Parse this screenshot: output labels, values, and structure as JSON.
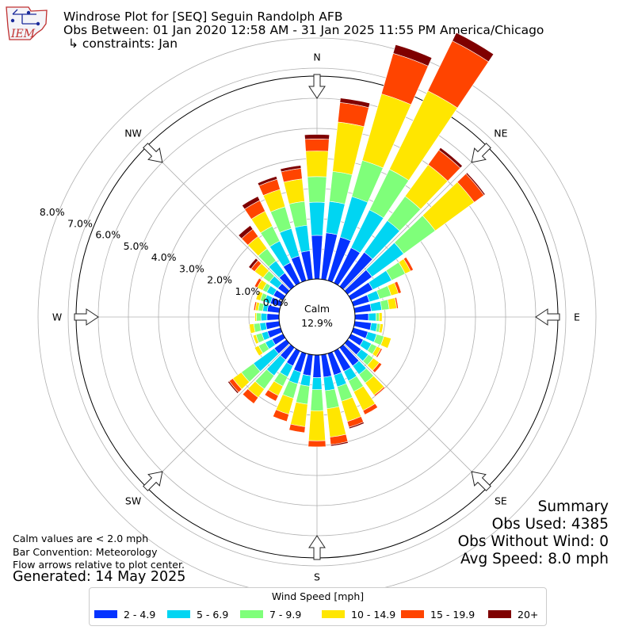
{
  "header": {
    "title": "Windrose Plot for [SEQ] Seguin Randolph AFB",
    "obs_range": "Obs Between: 01 Jan 2020 12:58 AM - 31 Jan 2025 11:55 PM America/Chicago",
    "constraints": "↳ constraints: Jan",
    "logo_text": "IEM"
  },
  "notes": {
    "calm_def": "Calm values are < 2.0 mph",
    "convention": "Bar Convention: Meteorology",
    "flow": "Flow arrows relative to plot center.",
    "generated": "Generated: 14 May 2025"
  },
  "summary": {
    "title": "Summary",
    "obs_used": "Obs Used: 4385",
    "obs_without_wind": "Obs Without Wind: 0",
    "avg_speed": "Avg Speed: 8.0 mph"
  },
  "chart_data": {
    "type": "windrose",
    "calm_label": "Calm",
    "calm_percent": "12.9%",
    "radial_ticks": [
      "0.0%",
      "1.0%",
      "2.0%",
      "3.0%",
      "4.0%",
      "5.0%",
      "6.0%",
      "7.0%",
      "8.0%"
    ],
    "compass_labels": [
      "N",
      "NE",
      "E",
      "SE",
      "S",
      "SW",
      "W",
      "NW"
    ],
    "legend_title": "Wind Speed [mph]",
    "bins": [
      {
        "label": "2 - 4.9",
        "color": "#0433ff"
      },
      {
        "label": "5 - 6.9",
        "color": "#00d5f2"
      },
      {
        "label": "7 - 9.9",
        "color": "#7fff7a"
      },
      {
        "label": "10 - 14.9",
        "color": "#ffe600"
      },
      {
        "label": "15 - 19.9",
        "color": "#ff4400"
      },
      {
        "label": "20+",
        "color": "#7f0000"
      }
    ],
    "directions_deg": [
      0,
      10,
      20,
      30,
      40,
      50,
      60,
      70,
      80,
      90,
      100,
      110,
      120,
      130,
      140,
      150,
      160,
      170,
      180,
      190,
      200,
      210,
      220,
      230,
      240,
      250,
      260,
      270,
      280,
      290,
      300,
      310,
      320,
      330,
      340,
      350
    ],
    "cumulative_percent": [
      [
        1.45,
        2.55,
        3.4,
        4.25,
        4.65,
        4.8
      ],
      [
        1.55,
        2.6,
        3.6,
        5.25,
        5.9,
        6.05
      ],
      [
        1.5,
        2.9,
        4.15,
        6.45,
        7.85,
        8.15
      ],
      [
        1.3,
        2.7,
        4.2,
        7.1,
        8.95,
        9.25
      ],
      [
        1.4,
        2.7,
        3.7,
        5.0,
        5.6,
        5.7
      ],
      [
        1.0,
        2.3,
        3.6,
        5.2,
        5.6,
        5.65
      ],
      [
        0.8,
        1.5,
        2.0,
        2.2,
        2.3,
        2.3
      ],
      [
        0.55,
        0.9,
        1.3,
        1.55,
        1.65,
        1.65
      ],
      [
        0.55,
        0.9,
        1.15,
        1.4,
        1.45,
        1.45
      ],
      [
        0.45,
        0.7,
        0.8,
        0.9,
        0.9,
        0.9
      ],
      [
        0.55,
        0.75,
        0.85,
        0.95,
        0.95,
        0.95
      ],
      [
        0.5,
        0.8,
        1.05,
        1.3,
        1.3,
        1.3
      ],
      [
        0.45,
        0.75,
        0.95,
        1.1,
        1.15,
        1.15
      ],
      [
        0.55,
        0.85,
        1.05,
        1.3,
        1.4,
        1.4
      ],
      [
        0.75,
        1.1,
        1.45,
        1.95,
        2.0,
        2.0
      ],
      [
        0.75,
        1.1,
        1.5,
        2.2,
        2.35,
        2.35
      ],
      [
        0.75,
        1.15,
        1.65,
        2.35,
        2.55,
        2.6
      ],
      [
        0.75,
        1.2,
        1.8,
        2.75,
        3.0,
        3.05
      ],
      [
        0.75,
        1.15,
        1.85,
        2.85,
        3.05,
        3.05
      ],
      [
        0.7,
        1.05,
        1.65,
        2.4,
        2.6,
        2.6
      ],
      [
        0.65,
        1.05,
        1.55,
        2.1,
        2.35,
        2.35
      ],
      [
        0.55,
        0.95,
        1.3,
        1.65,
        1.85,
        1.85
      ],
      [
        0.5,
        1.15,
        1.7,
        2.05,
        2.3,
        2.3
      ],
      [
        0.5,
        1.35,
        1.85,
        2.2,
        2.35,
        2.4
      ],
      [
        0.4,
        0.65,
        0.9,
        1.05,
        1.05,
        1.05
      ],
      [
        0.45,
        0.65,
        0.85,
        0.95,
        0.95,
        0.95
      ],
      [
        0.45,
        0.65,
        0.85,
        1.0,
        1.0,
        1.0
      ],
      [
        0.4,
        0.6,
        0.75,
        0.8,
        0.8,
        0.8
      ],
      [
        0.4,
        0.55,
        0.7,
        0.8,
        0.85,
        0.85
      ],
      [
        0.35,
        0.55,
        0.7,
        0.85,
        0.85,
        0.85
      ],
      [
        0.35,
        0.6,
        0.75,
        0.95,
        1.05,
        1.05
      ],
      [
        0.35,
        0.7,
        0.95,
        1.3,
        1.45,
        1.55
      ],
      [
        0.55,
        1.05,
        1.55,
        2.05,
        2.35,
        2.5
      ],
      [
        0.75,
        1.55,
        2.1,
        2.65,
        3.05,
        3.2
      ],
      [
        0.85,
        1.8,
        2.55,
        3.15,
        3.5,
        3.6
      ],
      [
        0.95,
        1.8,
        2.6,
        3.35,
        3.7,
        3.8
      ]
    ]
  }
}
